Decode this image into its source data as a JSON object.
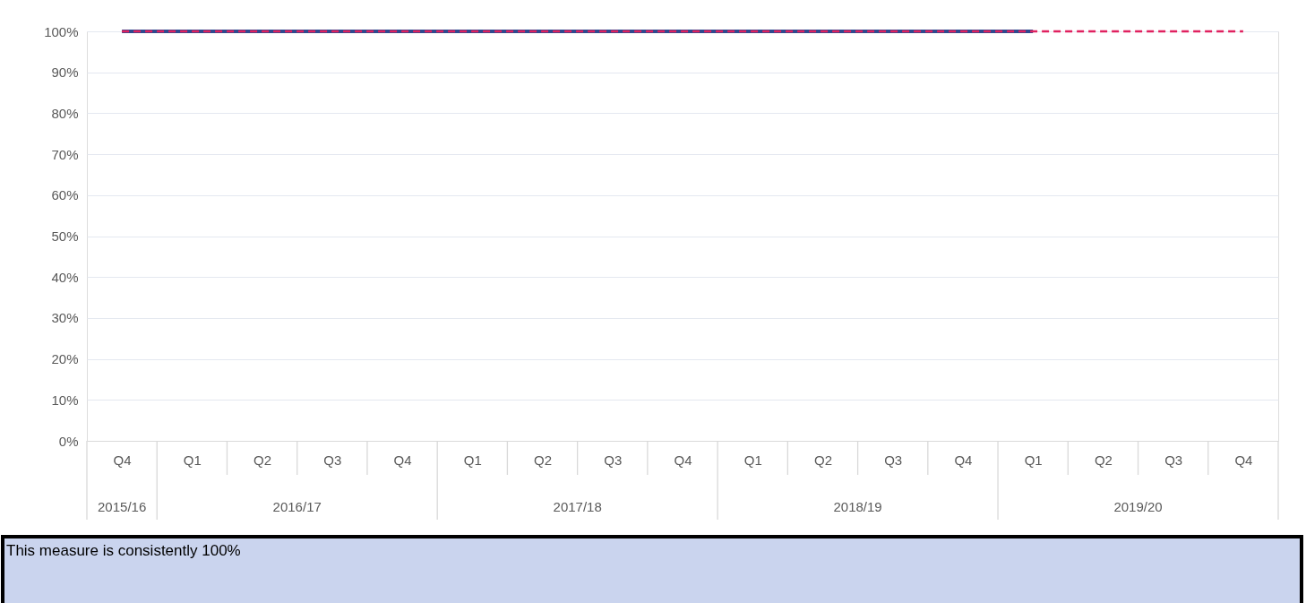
{
  "chart_data": {
    "type": "line",
    "categories": [
      "Q4",
      "Q1",
      "Q2",
      "Q3",
      "Q4",
      "Q1",
      "Q2",
      "Q3",
      "Q4",
      "Q1",
      "Q2",
      "Q3",
      "Q4",
      "Q1",
      "Q2",
      "Q3",
      "Q4"
    ],
    "series": [
      {
        "color": "#2e4a8f",
        "line_style": "solid",
        "values": [
          100,
          100,
          100,
          100,
          100,
          100,
          100,
          100,
          100,
          100,
          100,
          100,
          100,
          100,
          null,
          null,
          null
        ]
      },
      {
        "color": "#e0215f",
        "line_style": "dashed",
        "values": [
          100,
          100,
          100,
          100,
          100,
          100,
          100,
          100,
          100,
          100,
          100,
          100,
          100,
          100,
          100,
          100,
          100
        ]
      }
    ],
    "ylim": [
      0,
      100
    ],
    "yticks": [
      {
        "value": 0,
        "label": "0%"
      },
      {
        "value": 10,
        "label": "10%"
      },
      {
        "value": 20,
        "label": "20%"
      },
      {
        "value": 30,
        "label": "30%"
      },
      {
        "value": 40,
        "label": "40%"
      },
      {
        "value": 50,
        "label": "50%"
      },
      {
        "value": 60,
        "label": "60%"
      },
      {
        "value": 70,
        "label": "70%"
      },
      {
        "value": 80,
        "label": "80%"
      },
      {
        "value": 90,
        "label": "90%"
      },
      {
        "value": 100,
        "label": "100%"
      }
    ],
    "grid": "y",
    "annotations": [
      "2015/16",
      "2016/17",
      "2017/18",
      "2018/19",
      "2019/20",
      "This measure is consistently 100%"
    ]
  }
}
